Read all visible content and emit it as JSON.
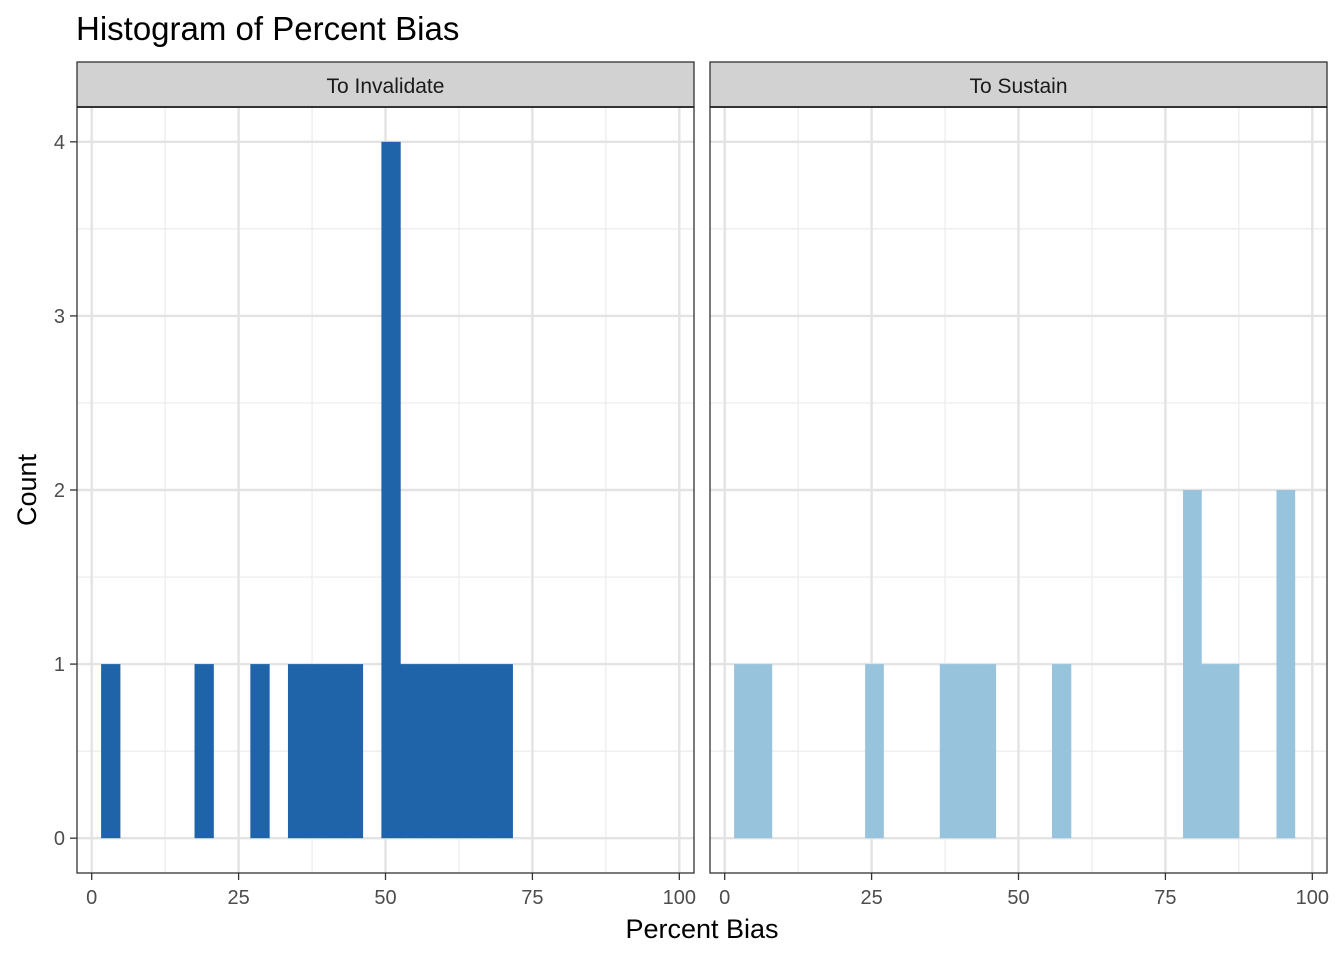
{
  "chart_data": {
    "type": "bar",
    "title": "Histogram of Percent Bias",
    "xlabel": "Percent Bias",
    "ylabel": "Count",
    "xlim": [
      -2.5,
      102.5
    ],
    "ylim": [
      -0.2,
      4.2
    ],
    "x_ticks": [
      0,
      25,
      50,
      75,
      100
    ],
    "y_ticks": [
      0,
      1,
      2,
      3,
      4
    ],
    "bin_width": 3.18,
    "grid": true,
    "legend": "none",
    "panels": [
      {
        "label": "To Invalidate",
        "color": "#1f63a8",
        "bins": [
          {
            "x0": 1.6,
            "x1": 4.8,
            "count": 1
          },
          {
            "x0": 17.5,
            "x1": 20.7,
            "count": 1
          },
          {
            "x0": 27.0,
            "x1": 30.2,
            "count": 1
          },
          {
            "x0": 33.4,
            "x1": 36.6,
            "count": 1
          },
          {
            "x0": 36.6,
            "x1": 39.8,
            "count": 1
          },
          {
            "x0": 39.8,
            "x1": 43.0,
            "count": 1
          },
          {
            "x0": 43.0,
            "x1": 46.1,
            "count": 1
          },
          {
            "x0": 49.3,
            "x1": 52.5,
            "count": 4
          },
          {
            "x0": 52.5,
            "x1": 55.7,
            "count": 1
          },
          {
            "x0": 55.7,
            "x1": 58.9,
            "count": 1
          },
          {
            "x0": 58.9,
            "x1": 62.0,
            "count": 1
          },
          {
            "x0": 62.0,
            "x1": 65.2,
            "count": 1
          },
          {
            "x0": 65.2,
            "x1": 68.4,
            "count": 1
          },
          {
            "x0": 68.4,
            "x1": 71.6,
            "count": 1
          }
        ]
      },
      {
        "label": "To Sustain",
        "color": "#97c3dd",
        "bins": [
          {
            "x0": 1.6,
            "x1": 4.8,
            "count": 1
          },
          {
            "x0": 4.8,
            "x1": 8.0,
            "count": 1
          },
          {
            "x0": 23.9,
            "x1": 27.0,
            "count": 1
          },
          {
            "x0": 36.6,
            "x1": 39.8,
            "count": 1
          },
          {
            "x0": 39.8,
            "x1": 43.0,
            "count": 1
          },
          {
            "x0": 43.0,
            "x1": 46.1,
            "count": 1
          },
          {
            "x0": 55.7,
            "x1": 58.9,
            "count": 1
          },
          {
            "x0": 78.0,
            "x1": 81.1,
            "count": 2
          },
          {
            "x0": 81.1,
            "x1": 84.3,
            "count": 1
          },
          {
            "x0": 84.3,
            "x1": 87.5,
            "count": 1
          },
          {
            "x0": 93.9,
            "x1": 97.0,
            "count": 2
          }
        ]
      }
    ]
  }
}
